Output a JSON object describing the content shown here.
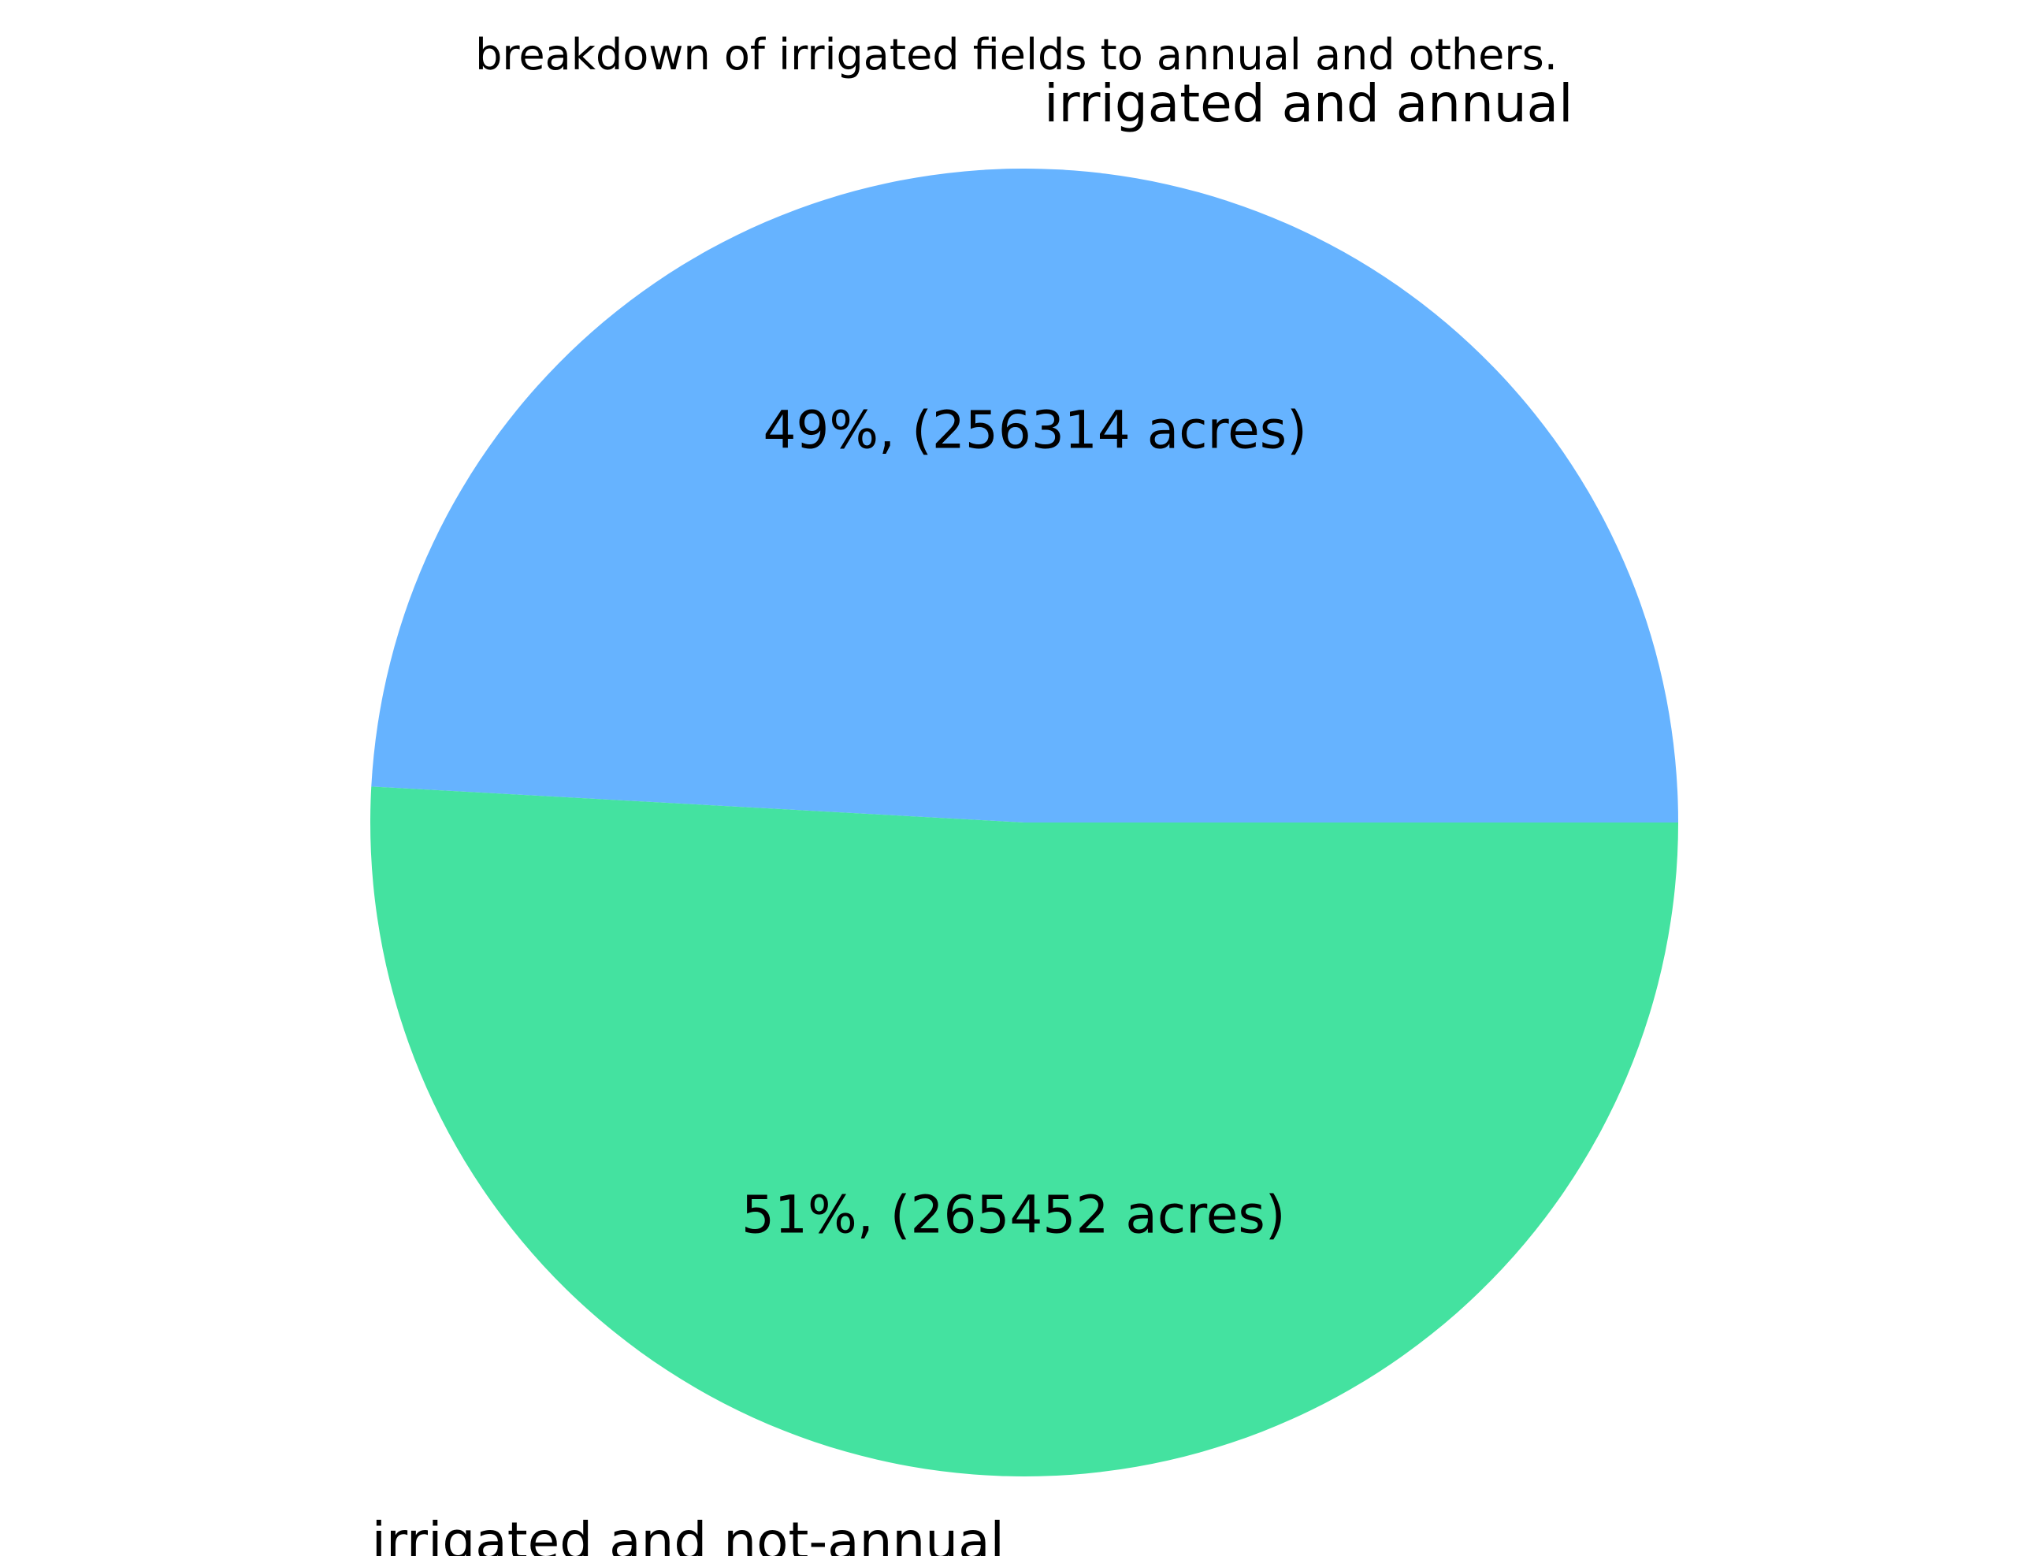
{
  "chart_data": {
    "type": "pie",
    "title": "breakdown of irrigated fields to annual and others.",
    "slices": [
      {
        "label": "irrigated and annual",
        "value": 256314,
        "percent_label": "49%, (256314 acres)",
        "color": "#66b3ff"
      },
      {
        "label": "irrigated and not-annual",
        "value": 265452,
        "percent_label": "51%, (265452 acres)",
        "color": "#44e2a0"
      }
    ],
    "start_angle": "0 deg (3 o'clock), counter-clockwise"
  }
}
